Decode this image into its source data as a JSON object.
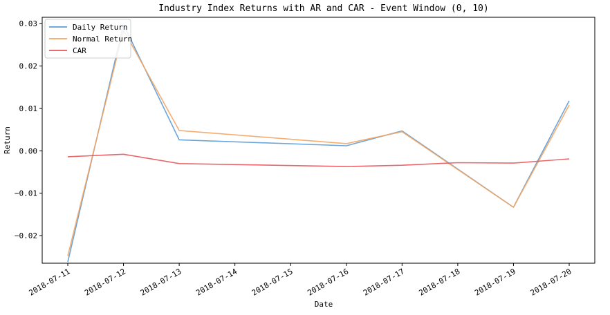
{
  "chart_data": {
    "type": "line",
    "title": "Industry Index Returns with AR and CAR - Event Window (0, 10)",
    "xlabel": "Date",
    "ylabel": "Return",
    "x": [
      "2018-07-11",
      "2018-07-12",
      "2018-07-13",
      "2018-07-14",
      "2018-07-15",
      "2018-07-16",
      "2018-07-17",
      "2018-07-18",
      "2018-07-19",
      "2018-07-20"
    ],
    "ylim": [
      -0.0265,
      0.0315
    ],
    "yticks": [
      -0.02,
      -0.01,
      0.0,
      0.01,
      0.02,
      0.03
    ],
    "ytick_labels": [
      "−0.02",
      "−0.01",
      "0.00",
      "0.01",
      "0.02",
      "0.03"
    ],
    "grid": false,
    "legend_position": "upper-left",
    "series": [
      {
        "name": "Daily Return",
        "color": "#5b9bd5",
        "x": [
          "2018-07-11",
          "2018-07-12",
          "2018-07-13",
          "2018-07-16",
          "2018-07-17",
          "2018-07-19",
          "2018-07-20"
        ],
        "values": [
          -0.0262,
          0.0298,
          0.0026,
          0.0012,
          0.0047,
          -0.0133,
          0.0118
        ]
      },
      {
        "name": "Normal Return",
        "color": "#f4a460",
        "x": [
          "2018-07-11",
          "2018-07-12",
          "2018-07-13",
          "2018-07-16",
          "2018-07-17",
          "2018-07-19",
          "2018-07-20"
        ],
        "values": [
          -0.0248,
          0.0285,
          0.0048,
          0.0017,
          0.0045,
          -0.0133,
          0.0108
        ]
      },
      {
        "name": "CAR",
        "color": "#e8555a",
        "x": [
          "2018-07-11",
          "2018-07-12",
          "2018-07-13",
          "2018-07-16",
          "2018-07-17",
          "2018-07-18",
          "2018-07-19",
          "2018-07-20"
        ],
        "values": [
          -0.0014,
          -0.0008,
          -0.003,
          -0.0037,
          -0.0034,
          -0.0028,
          -0.0029,
          -0.0019
        ]
      }
    ]
  }
}
